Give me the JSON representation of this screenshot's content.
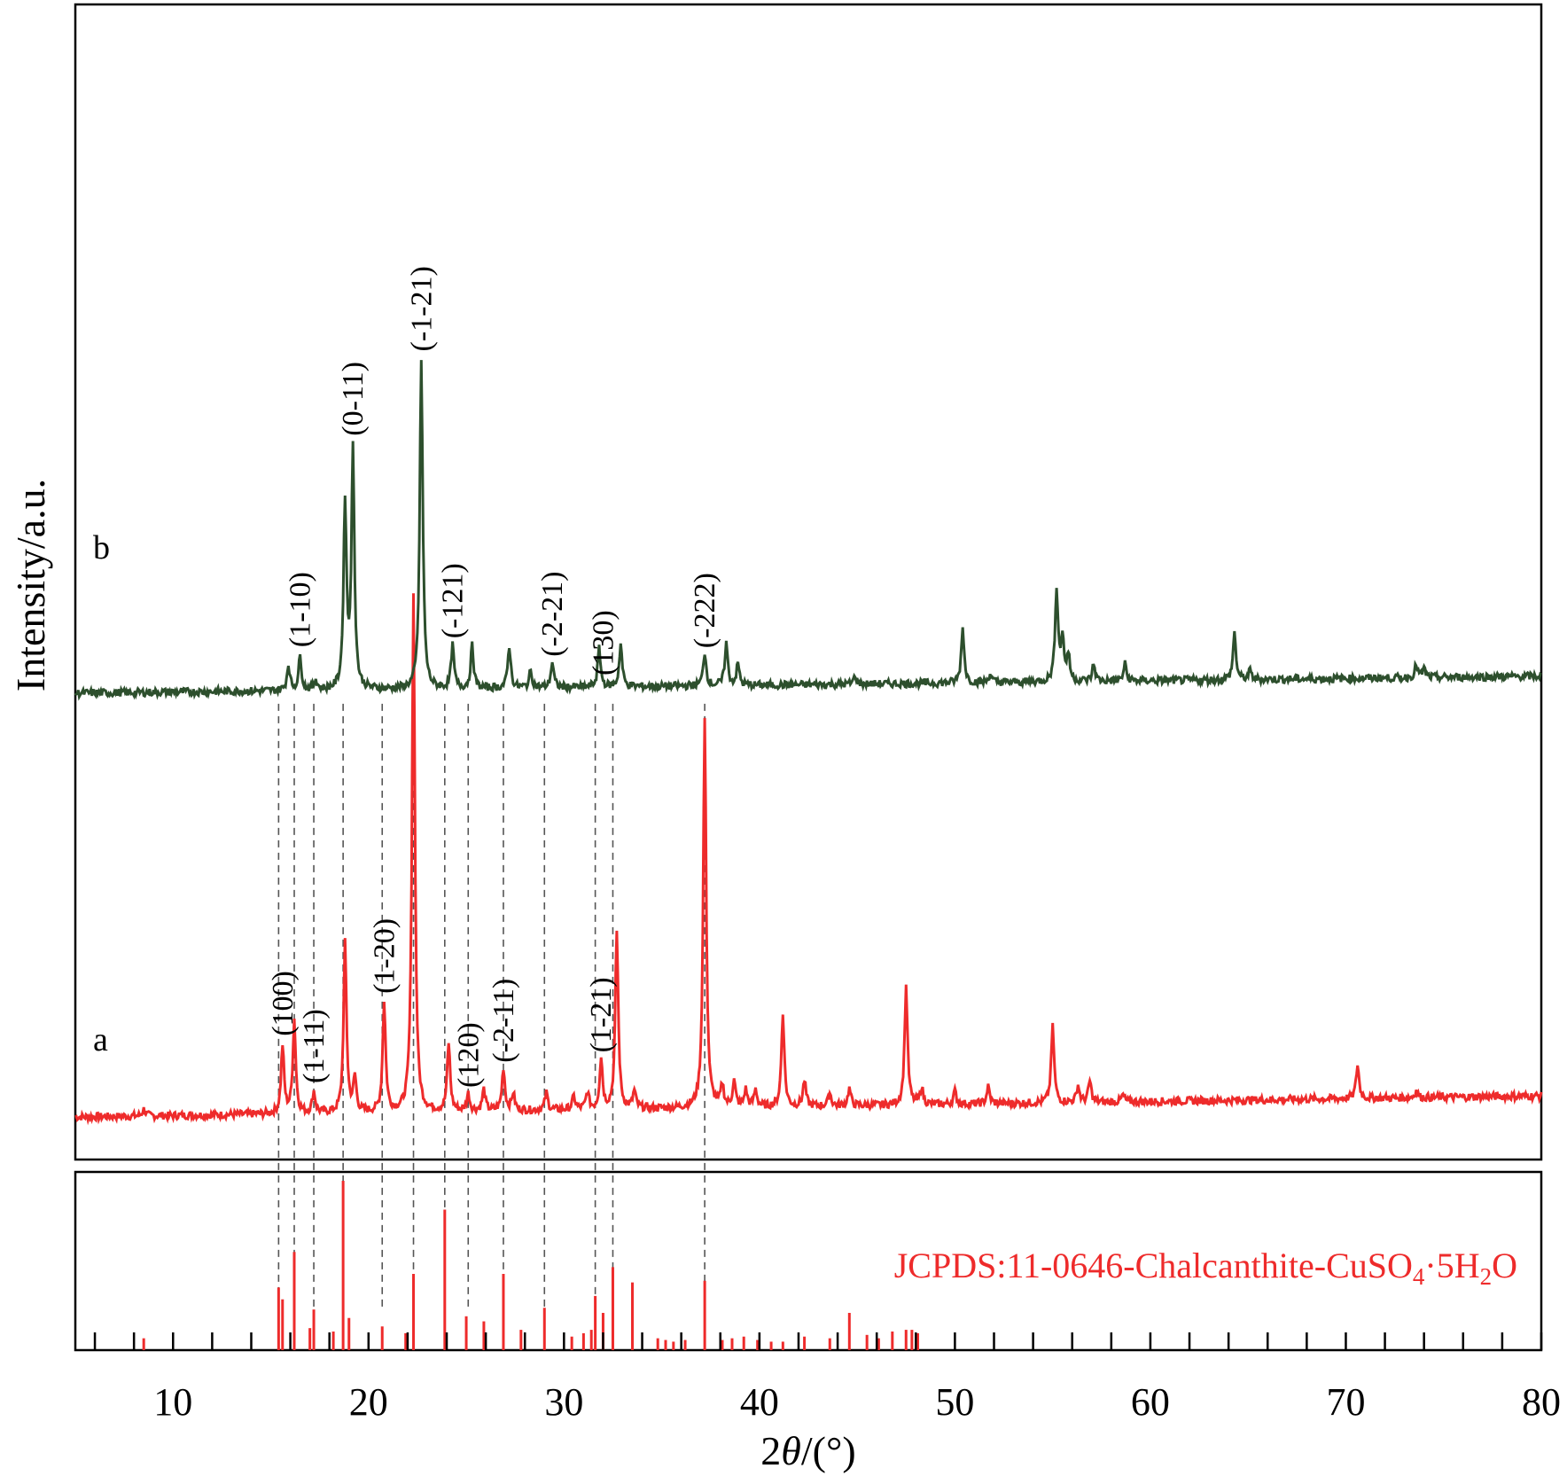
{
  "chart_data": [
    {
      "type": "line",
      "panel": "top",
      "xlabel": "2θ/(°)",
      "ylabel": "Intensity/a.u.",
      "xlim": [
        5,
        80
      ],
      "ylim": [
        0,
        130
      ],
      "xticks": [
        10,
        20,
        30,
        40,
        50,
        60,
        70,
        80
      ],
      "grid": false,
      "series": [
        {
          "name": "a",
          "color": "#ee2b2b",
          "baseline_start": 0,
          "baseline_end": 2.5,
          "peaks": [
            {
              "x": 8.5,
              "y": 0.8
            },
            {
              "x": 15.6,
              "y": 8
            },
            {
              "x": 16.2,
              "y": 11
            },
            {
              "x": 17.2,
              "y": 2.5
            },
            {
              "x": 18.8,
              "y": 20
            },
            {
              "x": 19.3,
              "y": 4
            },
            {
              "x": 20.8,
              "y": 13
            },
            {
              "x": 22.3,
              "y": 61
            },
            {
              "x": 24.1,
              "y": 8
            },
            {
              "x": 25.1,
              "y": 2
            },
            {
              "x": 25.9,
              "y": 2.5
            },
            {
              "x": 26.9,
              "y": 5
            },
            {
              "x": 27.4,
              "y": 2
            },
            {
              "x": 29.1,
              "y": 2
            },
            {
              "x": 30.5,
              "y": 1.5
            },
            {
              "x": 31.2,
              "y": 2
            },
            {
              "x": 31.9,
              "y": 6
            },
            {
              "x": 32.7,
              "y": 21
            },
            {
              "x": 33.6,
              "y": 2
            },
            {
              "x": 37.2,
              "y": 46
            },
            {
              "x": 38.1,
              "y": 2.5
            },
            {
              "x": 38.7,
              "y": 3
            },
            {
              "x": 39.3,
              "y": 2
            },
            {
              "x": 39.8,
              "y": 2
            },
            {
              "x": 41.2,
              "y": 11
            },
            {
              "x": 42.3,
              "y": 3
            },
            {
              "x": 43.6,
              "y": 1.5
            },
            {
              "x": 44.6,
              "y": 2
            },
            {
              "x": 47.5,
              "y": 14
            },
            {
              "x": 48.3,
              "y": 2
            },
            {
              "x": 50.0,
              "y": 1.5
            },
            {
              "x": 51.7,
              "y": 2
            },
            {
              "x": 55.0,
              "y": 9
            },
            {
              "x": 56.3,
              "y": 2
            },
            {
              "x": 56.9,
              "y": 2.5
            },
            {
              "x": 58.6,
              "y": 0.8
            },
            {
              "x": 70.6,
              "y": 4
            },
            {
              "x": 73.6,
              "y": 0.8
            }
          ]
        },
        {
          "name": "b",
          "color": "#2d4f2d",
          "baseline_start": 50,
          "baseline_end": 52,
          "peaks": [
            {
              "x": 15.9,
              "y": 3
            },
            {
              "x": 16.5,
              "y": 4
            },
            {
              "x": 17.3,
              "y": 1.2
            },
            {
              "x": 18.8,
              "y": 22
            },
            {
              "x": 19.2,
              "y": 28
            },
            {
              "x": 22.7,
              "y": 39
            },
            {
              "x": 24.3,
              "y": 5
            },
            {
              "x": 25.3,
              "y": 5
            },
            {
              "x": 27.2,
              "y": 5
            },
            {
              "x": 28.3,
              "y": 2
            },
            {
              "x": 29.4,
              "y": 3
            },
            {
              "x": 31.8,
              "y": 4.5
            },
            {
              "x": 32.9,
              "y": 5
            },
            {
              "x": 37.2,
              "y": 4
            },
            {
              "x": 38.3,
              "y": 5
            },
            {
              "x": 38.9,
              "y": 2.5
            },
            {
              "x": 44.9,
              "y": 1
            },
            {
              "x": 50.4,
              "y": 6.5
            },
            {
              "x": 51.8,
              "y": 1
            },
            {
              "x": 55.2,
              "y": 11
            },
            {
              "x": 55.5,
              "y": 5
            },
            {
              "x": 55.8,
              "y": 3
            },
            {
              "x": 57.1,
              "y": 2
            },
            {
              "x": 58.7,
              "y": 2
            },
            {
              "x": 64.3,
              "y": 5.5
            },
            {
              "x": 65.1,
              "y": 1
            },
            {
              "x": 73.6,
              "y": 1.5
            },
            {
              "x": 74.0,
              "y": 1
            }
          ]
        }
      ],
      "annotations": {
        "a": [
          {
            "label": "(100)",
            "x": 15.6
          },
          {
            "label": "(1-11)",
            "x": 17.2
          },
          {
            "label": "(1-20)",
            "x": 20.8
          },
          {
            "label": "(120)",
            "x": 25.1
          },
          {
            "label": "(-2-11)",
            "x": 26.9
          },
          {
            "label": "(1-21)",
            "x": 31.9
          }
        ],
        "b": [
          {
            "label": "(1-10)",
            "x": 16.5
          },
          {
            "label": "(0-11)",
            "x": 19.2
          },
          {
            "label": "(-1-21)",
            "x": 22.7
          },
          {
            "label": "(-121)",
            "x": 24.3
          },
          {
            "label": "(-2-21)",
            "x": 29.4
          },
          {
            "label": "(130)",
            "x": 32.0
          },
          {
            "label": "(-222)",
            "x": 37.2
          }
        ]
      },
      "reference_lines_x": [
        15.4,
        16.2,
        17.2,
        18.7,
        20.7,
        22.3,
        23.9,
        25.1,
        26.9,
        29.0,
        31.6,
        32.5,
        37.2
      ]
    },
    {
      "type": "bar",
      "panel": "bottom",
      "label": "JCPDS:11-0646-Chalcanthite-CuSO4·5H2O",
      "label_parts": [
        "JCPDS:11-0646-Chalcanthite-CuSO",
        "4",
        "·5H",
        "2",
        "O"
      ],
      "color": "#ee2b2b",
      "xlim": [
        5,
        80
      ],
      "ylim": [
        0,
        100
      ],
      "x": [
        8.5,
        15.4,
        15.6,
        16.2,
        17.0,
        17.2,
        18.2,
        18.7,
        19.0,
        20.7,
        21.9,
        22.3,
        23.9,
        25.0,
        25.9,
        26.9,
        27.8,
        29.0,
        30.4,
        31.0,
        31.4,
        31.6,
        32.0,
        32.5,
        33.5,
        34.8,
        35.2,
        35.6,
        36.2,
        37.2,
        38.1,
        38.6,
        39.2,
        39.9,
        40.6,
        41.2,
        42.3,
        43.6,
        44.6,
        45.5,
        46.1,
        46.8,
        47.5,
        47.8,
        48.1
      ],
      "values": [
        7,
        37,
        30,
        58,
        13,
        24,
        11,
        100,
        19,
        14,
        10,
        45,
        83,
        20,
        17,
        45,
        12,
        25,
        8,
        10,
        12,
        32,
        22,
        49,
        40,
        7,
        6,
        5,
        6,
        41,
        6,
        7,
        8,
        6,
        5,
        5,
        8,
        7,
        22,
        9,
        7,
        11,
        12,
        12,
        10
      ]
    }
  ]
}
